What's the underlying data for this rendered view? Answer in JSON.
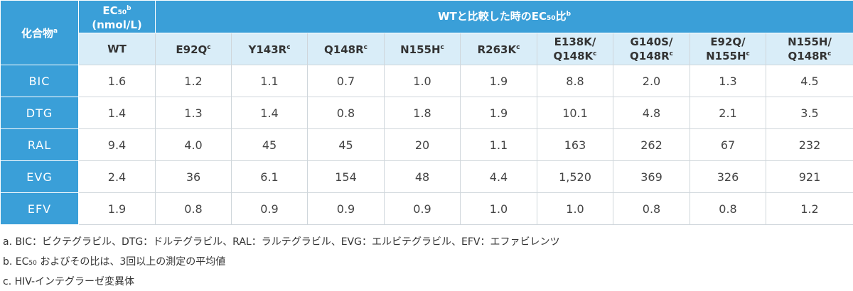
{
  "table": {
    "corner": {
      "text": "化合物",
      "sup": "a"
    },
    "ec50_header": {
      "text": "EC",
      "sub": "50",
      "sup": "b",
      "unit": "(nmol/L)"
    },
    "ratio_header": {
      "text": "WTと比較した時のEC",
      "sub": "50",
      "after": "比",
      "sup": "b"
    },
    "columns": [
      {
        "lines": [
          "WT"
        ]
      },
      {
        "lines": [
          "E92Q"
        ],
        "sup": "c"
      },
      {
        "lines": [
          "Y143R"
        ],
        "sup": "c"
      },
      {
        "lines": [
          "Q148R"
        ],
        "sup": "c"
      },
      {
        "lines": [
          "N155H"
        ],
        "sup": "c"
      },
      {
        "lines": [
          "R263K"
        ],
        "sup": "c"
      },
      {
        "lines": [
          "E138K/",
          "Q148K"
        ],
        "sup": "c"
      },
      {
        "lines": [
          "G140S/",
          "Q148R"
        ],
        "sup": "c"
      },
      {
        "lines": [
          "E92Q/",
          "N155H"
        ],
        "sup": "c"
      },
      {
        "lines": [
          "N155H/",
          "Q148R"
        ],
        "sup": "c"
      }
    ],
    "rows": [
      {
        "compound": "BIC",
        "values": [
          "1.6",
          "1.2",
          "1.1",
          "0.7",
          "1.0",
          "1.9",
          "8.8",
          "2.0",
          "1.3",
          "4.5"
        ]
      },
      {
        "compound": "DTG",
        "values": [
          "1.4",
          "1.3",
          "1.4",
          "0.8",
          "1.8",
          "1.9",
          "10.1",
          "4.8",
          "2.1",
          "3.5"
        ]
      },
      {
        "compound": "RAL",
        "values": [
          "9.4",
          "4.0",
          "45",
          "45",
          "20",
          "1.1",
          "163",
          "262",
          "67",
          "232"
        ]
      },
      {
        "compound": "EVG",
        "values": [
          "2.4",
          "36",
          "6.1",
          "154",
          "48",
          "4.4",
          "1,520",
          "369",
          "326",
          "921"
        ]
      },
      {
        "compound": "EFV",
        "values": [
          "1.9",
          "0.8",
          "0.9",
          "0.9",
          "0.9",
          "1.0",
          "1.0",
          "0.8",
          "0.8",
          "1.2"
        ]
      }
    ]
  },
  "footnotes": [
    {
      "text": "a. BIC：ビクテグラビル、DTG：ドルテグラビル、RAL：ラルテグラビル、EVG：エルビテグラビル、EFV：エファビレンツ"
    },
    {
      "text": "b. EC",
      "sub": "50",
      "after": " およびその比は、3回以上の測定の平均値"
    },
    {
      "text": "c. HIV-インテグラーゼ変異体"
    }
  ]
}
